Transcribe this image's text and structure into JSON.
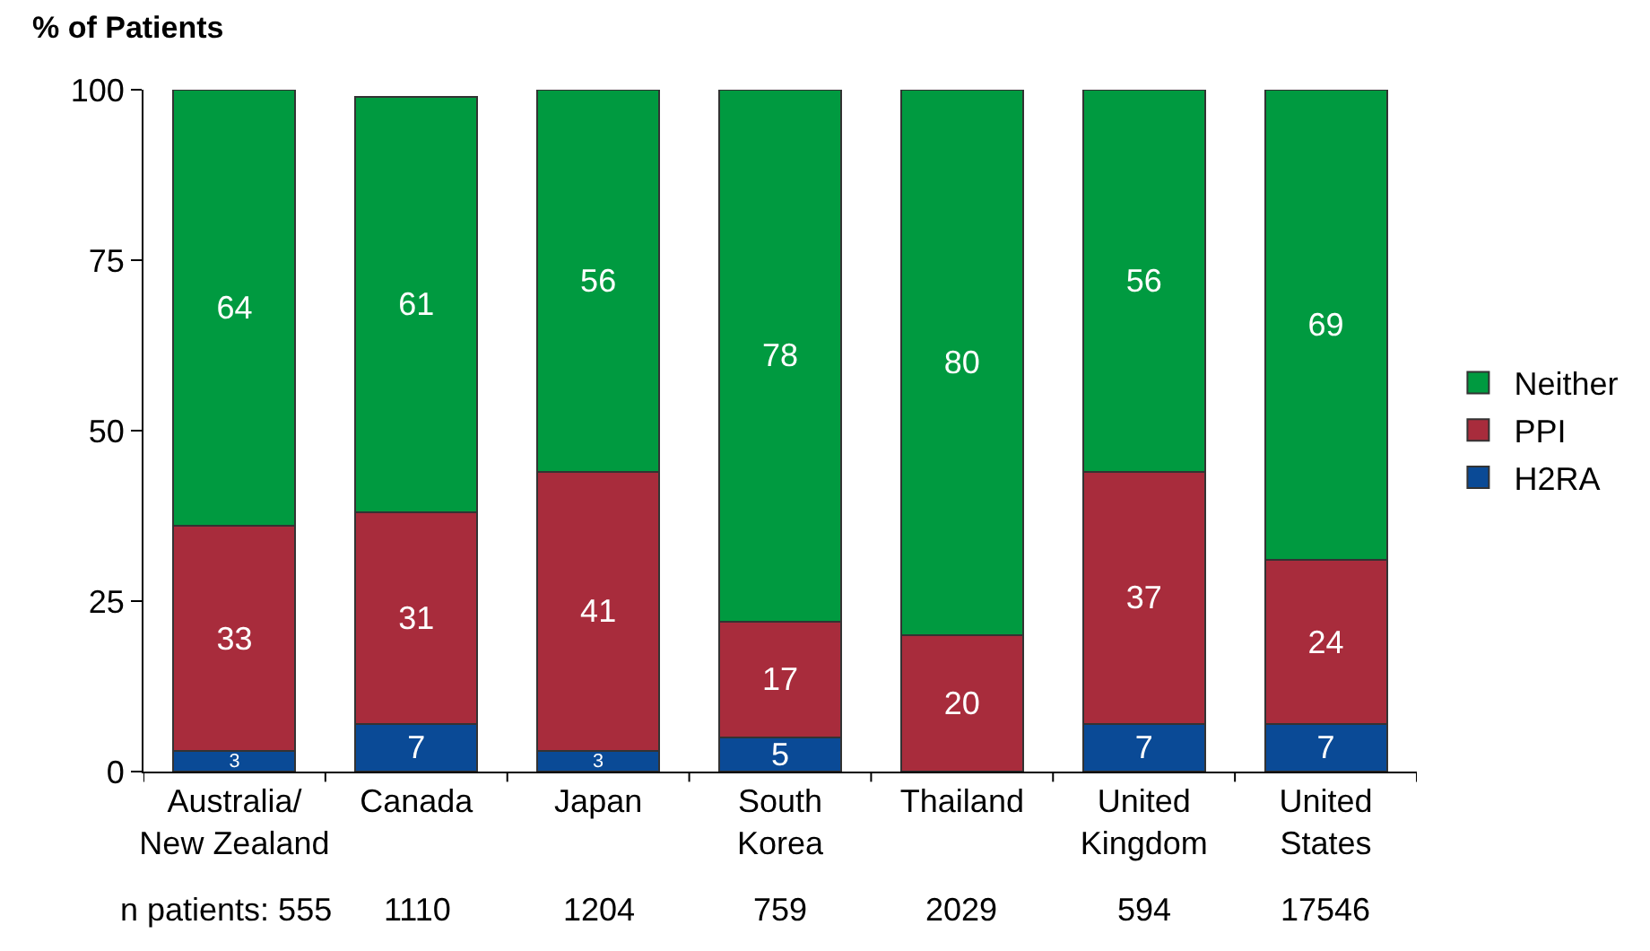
{
  "chart_data": {
    "type": "bar",
    "stacked": true,
    "ylabel": "% of Patients",
    "categories": [
      "Australia/\nNew Zealand",
      "Canada",
      "Japan",
      "South\nKorea",
      "Thailand",
      "United\nKingdom",
      "United\nStates"
    ],
    "series": [
      {
        "name": "H2RA",
        "color": "#0a4a96",
        "values": [
          3,
          7,
          3,
          5,
          null,
          7,
          7
        ]
      },
      {
        "name": "PPI",
        "color": "#a82c3c",
        "values": [
          33,
          31,
          41,
          17,
          20,
          37,
          24
        ]
      },
      {
        "name": "Neither",
        "color": "#009a40",
        "values": [
          64,
          61,
          56,
          78,
          80,
          56,
          69
        ]
      }
    ],
    "data_labels": true,
    "ylim": [
      0,
      100
    ],
    "yticks": [
      0,
      25,
      50,
      75,
      100
    ],
    "grid": false,
    "legend": "right",
    "annotations": [
      "n patients: 555",
      "1110",
      "1204",
      "759",
      "2029",
      "594",
      "17546"
    ]
  }
}
